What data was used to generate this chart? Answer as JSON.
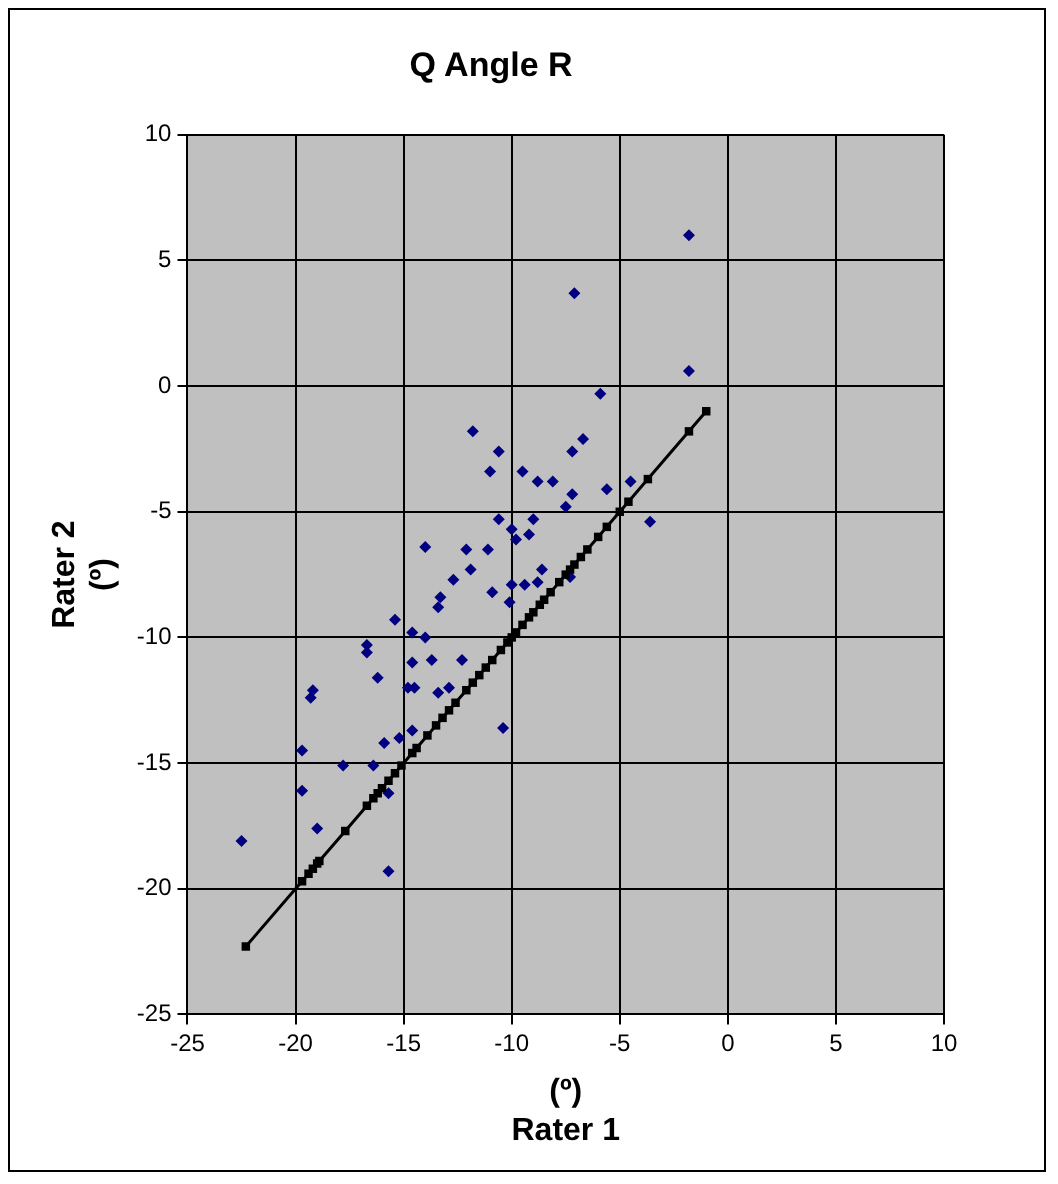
{
  "chart_data": {
    "type": "scatter",
    "title": "Q Angle R",
    "xlabel": "(º)\nRater 1",
    "ylabel": "Rater 2\n(º)",
    "xlim": [
      -25,
      10
    ],
    "xticks": [
      -25,
      -20,
      -15,
      -10,
      -5,
      0,
      5,
      10
    ],
    "ylim": [
      -25,
      10
    ],
    "yticks": [
      -25,
      -20,
      -15,
      -10,
      -5,
      0,
      5,
      10
    ],
    "grid": true,
    "legend": false,
    "marker": "diamond",
    "series": [
      {
        "color": "#000080",
        "x": [
          -1.8,
          -7.1,
          -1.8,
          -5.9,
          -11.8,
          -6.7,
          -10.6,
          -7.2,
          -11.0,
          -9.5,
          -8.8,
          -8.1,
          -4.5,
          -7.5,
          -10.6,
          -9.0,
          -10.0,
          -9.2,
          -9.8,
          -14.0,
          -12.1,
          -11.1,
          -11.9,
          -8.6,
          -8.8,
          -12.7,
          -10.9,
          -10.0,
          -9.4,
          -13.3,
          -10.1,
          -13.4,
          -15.4,
          -14.6,
          -14.0,
          -16.7,
          -16.7,
          -14.6,
          -13.7,
          -12.3,
          -16.2,
          -14.8,
          -14.5,
          -19.2,
          -19.3,
          -13.4,
          -12.9,
          -10.4,
          -14.6,
          -15.2,
          -15.9,
          -19.7,
          -17.8,
          -16.4,
          -19.7,
          -15.7,
          -7.2,
          -5.6,
          -3.6,
          -7.3,
          -22.5,
          -19.0,
          -15.7
        ],
        "values": [
          6,
          3.7,
          0.6,
          -0.3,
          -1.8,
          -2.1,
          -2.6,
          -2.6,
          -3.4,
          -3.4,
          -3.8,
          -3.8,
          -3.8,
          -4.8,
          -5.3,
          -5.3,
          -5.7,
          -5.9,
          -6.1,
          -6.4,
          -6.5,
          -6.5,
          -7.3,
          -7.3,
          -7.8,
          -7.7,
          -8.2,
          -7.9,
          -7.9,
          -8.4,
          -8.6,
          -8.8,
          -9.3,
          -9.8,
          -10.0,
          -10.3,
          -10.6,
          -11.0,
          -10.9,
          -10.9,
          -11.6,
          -12.0,
          -12.0,
          -12.1,
          -12.4,
          -12.2,
          -12.0,
          -13.6,
          -13.7,
          -14.0,
          -14.2,
          -14.5,
          -15.1,
          -15.1,
          -16.1,
          -16.2,
          -4.3,
          -4.1,
          -5.4,
          -7.6,
          -18.1,
          -17.6,
          -19.3
        ]
      },
      {
        "type": "line",
        "color": "#000000",
        "marker": "square",
        "line_style": "solid",
        "x": [
          -22.3,
          -19.7,
          -19.4,
          -19.2,
          -19.0,
          -18.9,
          -17.7,
          -16.7,
          -16.4,
          -16.2,
          -16.0,
          -15.7,
          -15.4,
          -15.1,
          -14.6,
          -14.4,
          -13.9,
          -13.5,
          -13.2,
          -12.9,
          -12.6,
          -12.1,
          -11.8,
          -11.5,
          -11.2,
          -10.9,
          -10.5,
          -10.2,
          -10.0,
          -9.8,
          -9.5,
          -9.2,
          -9.0,
          -8.7,
          -8.5,
          -8.2,
          -7.8,
          -7.5,
          -7.3,
          -7.1,
          -6.8,
          -6.5,
          -6.0,
          -5.6,
          -5.0,
          -4.6,
          -3.7,
          -1.8,
          -1.0
        ],
        "values": [
          -22.3,
          -19.7,
          -19.4,
          -19.2,
          -19.0,
          -18.9,
          -17.7,
          -16.7,
          -16.4,
          -16.2,
          -16.0,
          -15.7,
          -15.4,
          -15.1,
          -14.6,
          -14.4,
          -13.9,
          -13.5,
          -13.2,
          -12.9,
          -12.6,
          -12.1,
          -11.8,
          -11.5,
          -11.2,
          -10.9,
          -10.5,
          -10.2,
          -10.0,
          -9.8,
          -9.5,
          -9.2,
          -9.0,
          -8.7,
          -8.5,
          -8.2,
          -7.8,
          -7.5,
          -7.3,
          -7.1,
          -6.8,
          -6.5,
          -6.0,
          -5.6,
          -5.0,
          -4.6,
          -3.7,
          -1.8,
          -1.0
        ]
      }
    ]
  }
}
